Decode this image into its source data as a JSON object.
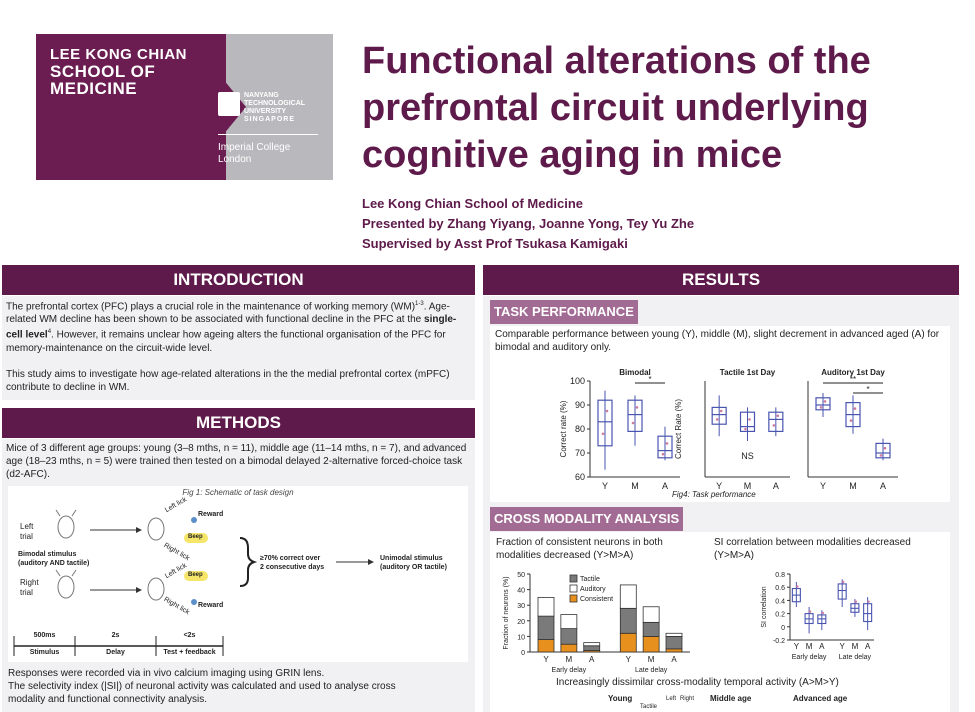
{
  "logo": {
    "school_lines": [
      "LEE KONG CHIAN",
      "SCHOOL OF",
      "MEDICINE"
    ],
    "ntu_lines": [
      "NANYANG",
      "TECHNOLOGICAL",
      "UNIVERSITY",
      "SINGAPORE"
    ],
    "imperial_lines": [
      "Imperial College",
      "London"
    ]
  },
  "title_lines": [
    "Functional alterations of the",
    "prefrontal circuit underlying",
    "cognitive aging in mice"
  ],
  "authors": [
    "Lee Kong Chian School of Medicine",
    "Presented by Zhang Yiyang, Joanne Yong, Tey Yu Zhe",
    "Supervised by Asst Prof Tsukasa Kamigaki"
  ],
  "introduction": {
    "heading": "INTRODUCTION",
    "p1_a": "The prefrontal cortex (PFC) plays a crucial role in the maintenance of working memory (WM)",
    "p1_sup1": "1-3",
    "p1_b": ". Age-related WM decline has been shown to be associated with functional decline in the PFC at the ",
    "p1_bold": "single-cell level",
    "p1_sup2": "4",
    "p1_c": ". However, it remains unclear how ageing alters the functional organisation of the PFC for memory-maintenance on the circuit-wide level.",
    "p2": "This study aims to investigate how age-related alterations in the the medial prefrontal cortex (mPFC) contribute to decline in WM."
  },
  "methods": {
    "heading": "METHODS",
    "p1": "Mice of 3 different age groups: young (3–8 mths, n = 11), middle age (11–14 mths, n = 7), and advanced age (18–23 mths, n = 5) were trained then tested on a bimodal delayed 2-alternative forced-choice task (d2-AFC).",
    "fig_caption": "Fig 1: Schematic of task design",
    "left_trial": [
      "Left",
      "trial"
    ],
    "right_trial": [
      "Right",
      "trial"
    ],
    "bimodal": [
      "Bimodal stimulus",
      "(auditory AND tactile)"
    ],
    "left_lick": "Left lick",
    "right_lick": "Right lick",
    "reward": "Reward",
    "beep": "Beep",
    "criterion": [
      "≥70% correct over",
      "2 consecutive days"
    ],
    "unimodal": [
      "Unimodal stimulus",
      "(auditory OR tactile)"
    ],
    "timeline_durations": [
      "500ms",
      "2s",
      "<2s"
    ],
    "timeline_labels": [
      "Stimulus",
      "Delay",
      "Test + feedback"
    ],
    "p2_lines": [
      "Responses were recorded via in vivo calcium imaging using GRIN lens.",
      "The selectivity index (|SI|) of neuronal activity was calculated and used to analyse cross",
      "modality and functional connectivity analysis."
    ]
  },
  "results": {
    "heading": "RESULTS",
    "task_heading": "TASK PERFORMANCE",
    "task_text": "Comparable performance between young (Y), middle (M), slight decrement in advanced aged (A) for bimodal and auditory only.",
    "fig4_caption": "Fig4: Task performance",
    "cross_heading": "CROSS MODALITY ANALYSIS",
    "cross_left_text": "Fraction of consistent neurons in both modalities decreased (Y>M>A)",
    "cross_right_text": "SI correlation between modalities decreased (Y>M>A)",
    "temporal_text": "Increasingly dissimilar cross-modality temporal activity (A>M>Y)",
    "bottom_labels": [
      "Young",
      "Middle age",
      "Advanced age"
    ],
    "bottom_legend": [
      "Tactile",
      "Left",
      "Right"
    ]
  },
  "chart_data": [
    {
      "type": "box",
      "title": "Bimodal",
      "ylabel": "Correct rate (%)",
      "categories": [
        "Y",
        "M",
        "A"
      ],
      "ylim": [
        60,
        100
      ],
      "yticks": [
        60,
        70,
        80,
        90,
        100
      ],
      "boxes": [
        {
          "min": 63,
          "q1": 73,
          "median": 83,
          "q3": 92,
          "max": 96
        },
        {
          "min": 73,
          "q1": 79,
          "median": 86,
          "q3": 92,
          "max": 94
        },
        {
          "min": 67,
          "q1": 68,
          "median": 71,
          "q3": 77,
          "max": 81
        }
      ],
      "significance": [
        {
          "from": "M",
          "to": "A",
          "label": "*"
        }
      ]
    },
    {
      "type": "box",
      "title": "Tactile 1st Day",
      "ylabel": "Correct Rate (%)",
      "categories": [
        "Y",
        "M",
        "A"
      ],
      "ylim": [
        45,
        85
      ],
      "boxes": [
        {
          "min": 62,
          "q1": 67,
          "median": 71,
          "q3": 74,
          "max": 79
        },
        {
          "min": 60,
          "q1": 64,
          "median": 66,
          "q3": 72,
          "max": 74
        },
        {
          "min": 62,
          "q1": 64,
          "median": 69,
          "q3": 72,
          "max": 74
        }
      ],
      "annotation": "NS"
    },
    {
      "type": "box",
      "title": "Auditory 1st Day",
      "categories": [
        "Y",
        "M",
        "A"
      ],
      "ylim": [
        45,
        85
      ],
      "boxes": [
        {
          "min": 70,
          "q1": 73,
          "median": 75,
          "q3": 78,
          "max": 80
        },
        {
          "min": 63,
          "q1": 66,
          "median": 71,
          "q3": 76,
          "max": 79
        },
        {
          "min": 52,
          "q1": 53,
          "median": 55,
          "q3": 59,
          "max": 61
        }
      ],
      "significance": [
        {
          "from": "Y",
          "to": "A",
          "label": "**"
        },
        {
          "from": "M",
          "to": "A",
          "label": "*"
        }
      ]
    },
    {
      "type": "bar",
      "stacked": true,
      "ylabel": "Fraction of neurons (%)",
      "categories": [
        "Y",
        "M",
        "A",
        "Y",
        "M",
        "A"
      ],
      "groups": [
        "Early delay",
        "Late delay"
      ],
      "ylim": [
        0,
        50
      ],
      "yticks": [
        0,
        10,
        20,
        30,
        40,
        50
      ],
      "series": [
        {
          "name": "Consistent",
          "values": [
            8,
            5,
            1,
            12,
            10,
            2
          ],
          "color": "#e8901e"
        },
        {
          "name": "Tactile",
          "values": [
            15,
            10,
            3,
            16,
            9,
            8
          ],
          "color": "#7a7a7a"
        },
        {
          "name": "Auditory",
          "values": [
            12,
            9,
            2,
            15,
            10,
            2
          ],
          "color": "#ffffff"
        }
      ]
    },
    {
      "type": "box",
      "ylabel": "SI correlation",
      "categories": [
        "Y",
        "M",
        "A",
        "Y",
        "M",
        "A"
      ],
      "groups": [
        "Early delay",
        "Late delay"
      ],
      "ylim": [
        -0.2,
        0.8
      ],
      "yticks": [
        -0.2,
        0,
        0.2,
        0.4,
        0.6,
        0.8
      ],
      "boxes": [
        {
          "min": 0.3,
          "q1": 0.38,
          "median": 0.48,
          "q3": 0.58,
          "max": 0.68
        },
        {
          "min": -0.1,
          "q1": 0.05,
          "median": 0.12,
          "q3": 0.2,
          "max": 0.3
        },
        {
          "min": -0.05,
          "q1": 0.05,
          "median": 0.12,
          "q3": 0.18,
          "max": 0.25
        },
        {
          "min": 0.3,
          "q1": 0.42,
          "median": 0.55,
          "q3": 0.65,
          "max": 0.72
        },
        {
          "min": 0.15,
          "q1": 0.22,
          "median": 0.28,
          "q3": 0.35,
          "max": 0.42
        },
        {
          "min": -0.05,
          "q1": 0.08,
          "median": 0.2,
          "q3": 0.35,
          "max": 0.45
        }
      ]
    }
  ]
}
